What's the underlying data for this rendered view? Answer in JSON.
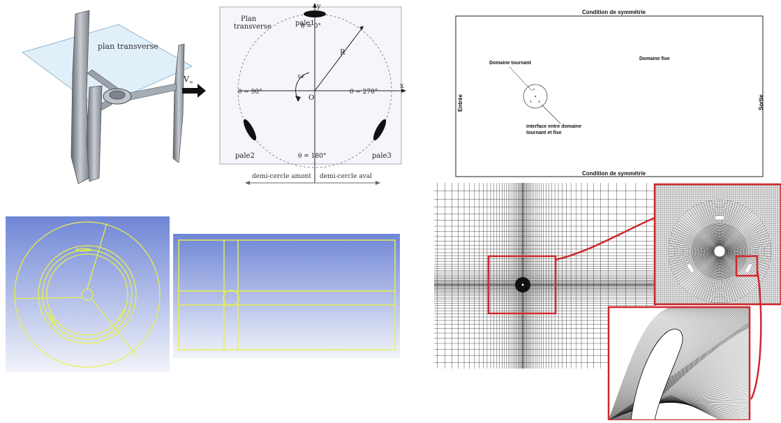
{
  "turbine": {
    "plane_label": "plan transverse"
  },
  "polar": {
    "velocity": "V",
    "velocity_sub": "∞",
    "plane_label_1": "Plan",
    "plane_label_2": "transverse",
    "axis_y": "y",
    "axis_x": "x",
    "blade1": "pale1",
    "blade2": "pale2",
    "blade3": "pale3",
    "theta_0": "θ = 0°",
    "theta_90": "θ = 90°",
    "theta_180": "θ = 180°",
    "theta_270": "θ = 270°",
    "omega": "ω",
    "radius": "R",
    "origin": "O",
    "upstream": "demi-cercle amont",
    "downstream": "demi-cercle aval"
  },
  "domain": {
    "top": "Condition de symmétrie",
    "bottom": "Condition de symmétrie",
    "inlet": "Entrée",
    "outlet": "Sortie",
    "rotating": "Domaine tournant",
    "fixed": "Domaine fixe",
    "interface_1": "interface entre domaine",
    "interface_2": "tournant et fixe"
  },
  "colors": {
    "geometry_line": "#e8f04a",
    "cad_background_top": "#6f86d6",
    "cad_background_bottom": "#f2f4fa",
    "zoom_frame": "#d0282c",
    "mesh_line": "#000000"
  }
}
